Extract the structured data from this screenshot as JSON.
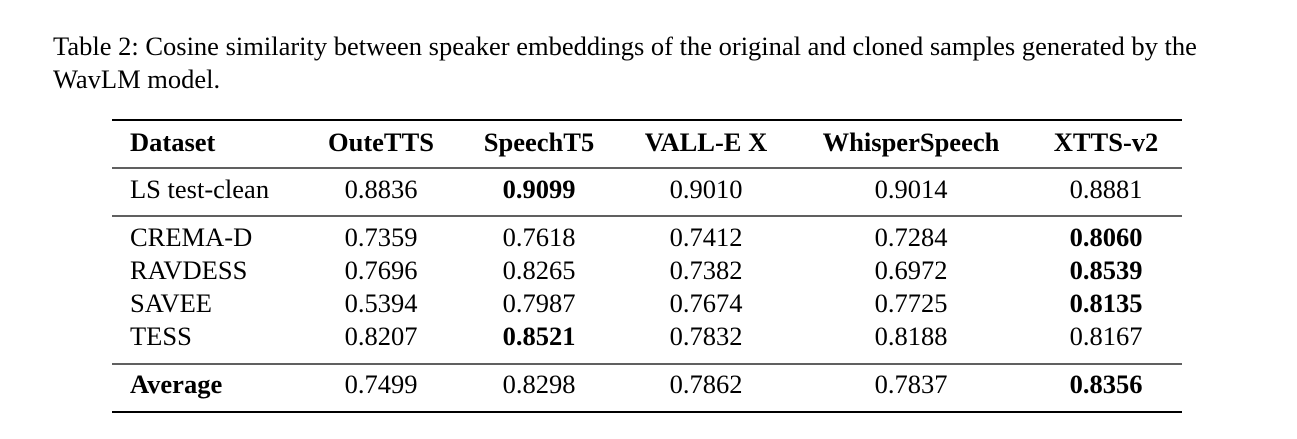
{
  "caption": "Table 2: Cosine similarity between speaker embeddings of the original and cloned samples generated by the WavLM model.",
  "table": {
    "header": [
      "Dataset",
      "OuteTTS",
      "SpeechT5",
      "VALL-E X",
      "WhisperSpeech",
      "XTTS-v2"
    ],
    "rows": [
      [
        "LS test-clean",
        "0.8836",
        "0.9099",
        "0.9010",
        "0.9014",
        "0.8881"
      ],
      [
        "CREMA-D",
        "0.7359",
        "0.7618",
        "0.7412",
        "0.7284",
        "0.8060"
      ],
      [
        "RAVDESS",
        "0.7696",
        "0.8265",
        "0.7382",
        "0.6972",
        "0.8539"
      ],
      [
        "SAVEE",
        "0.5394",
        "0.7987",
        "0.7674",
        "0.7725",
        "0.8135"
      ],
      [
        "TESS",
        "0.8207",
        "0.8521",
        "0.7832",
        "0.8188",
        "0.8167"
      ],
      [
        "Average",
        "0.7499",
        "0.8298",
        "0.7862",
        "0.7837",
        "0.8356"
      ]
    ]
  }
}
